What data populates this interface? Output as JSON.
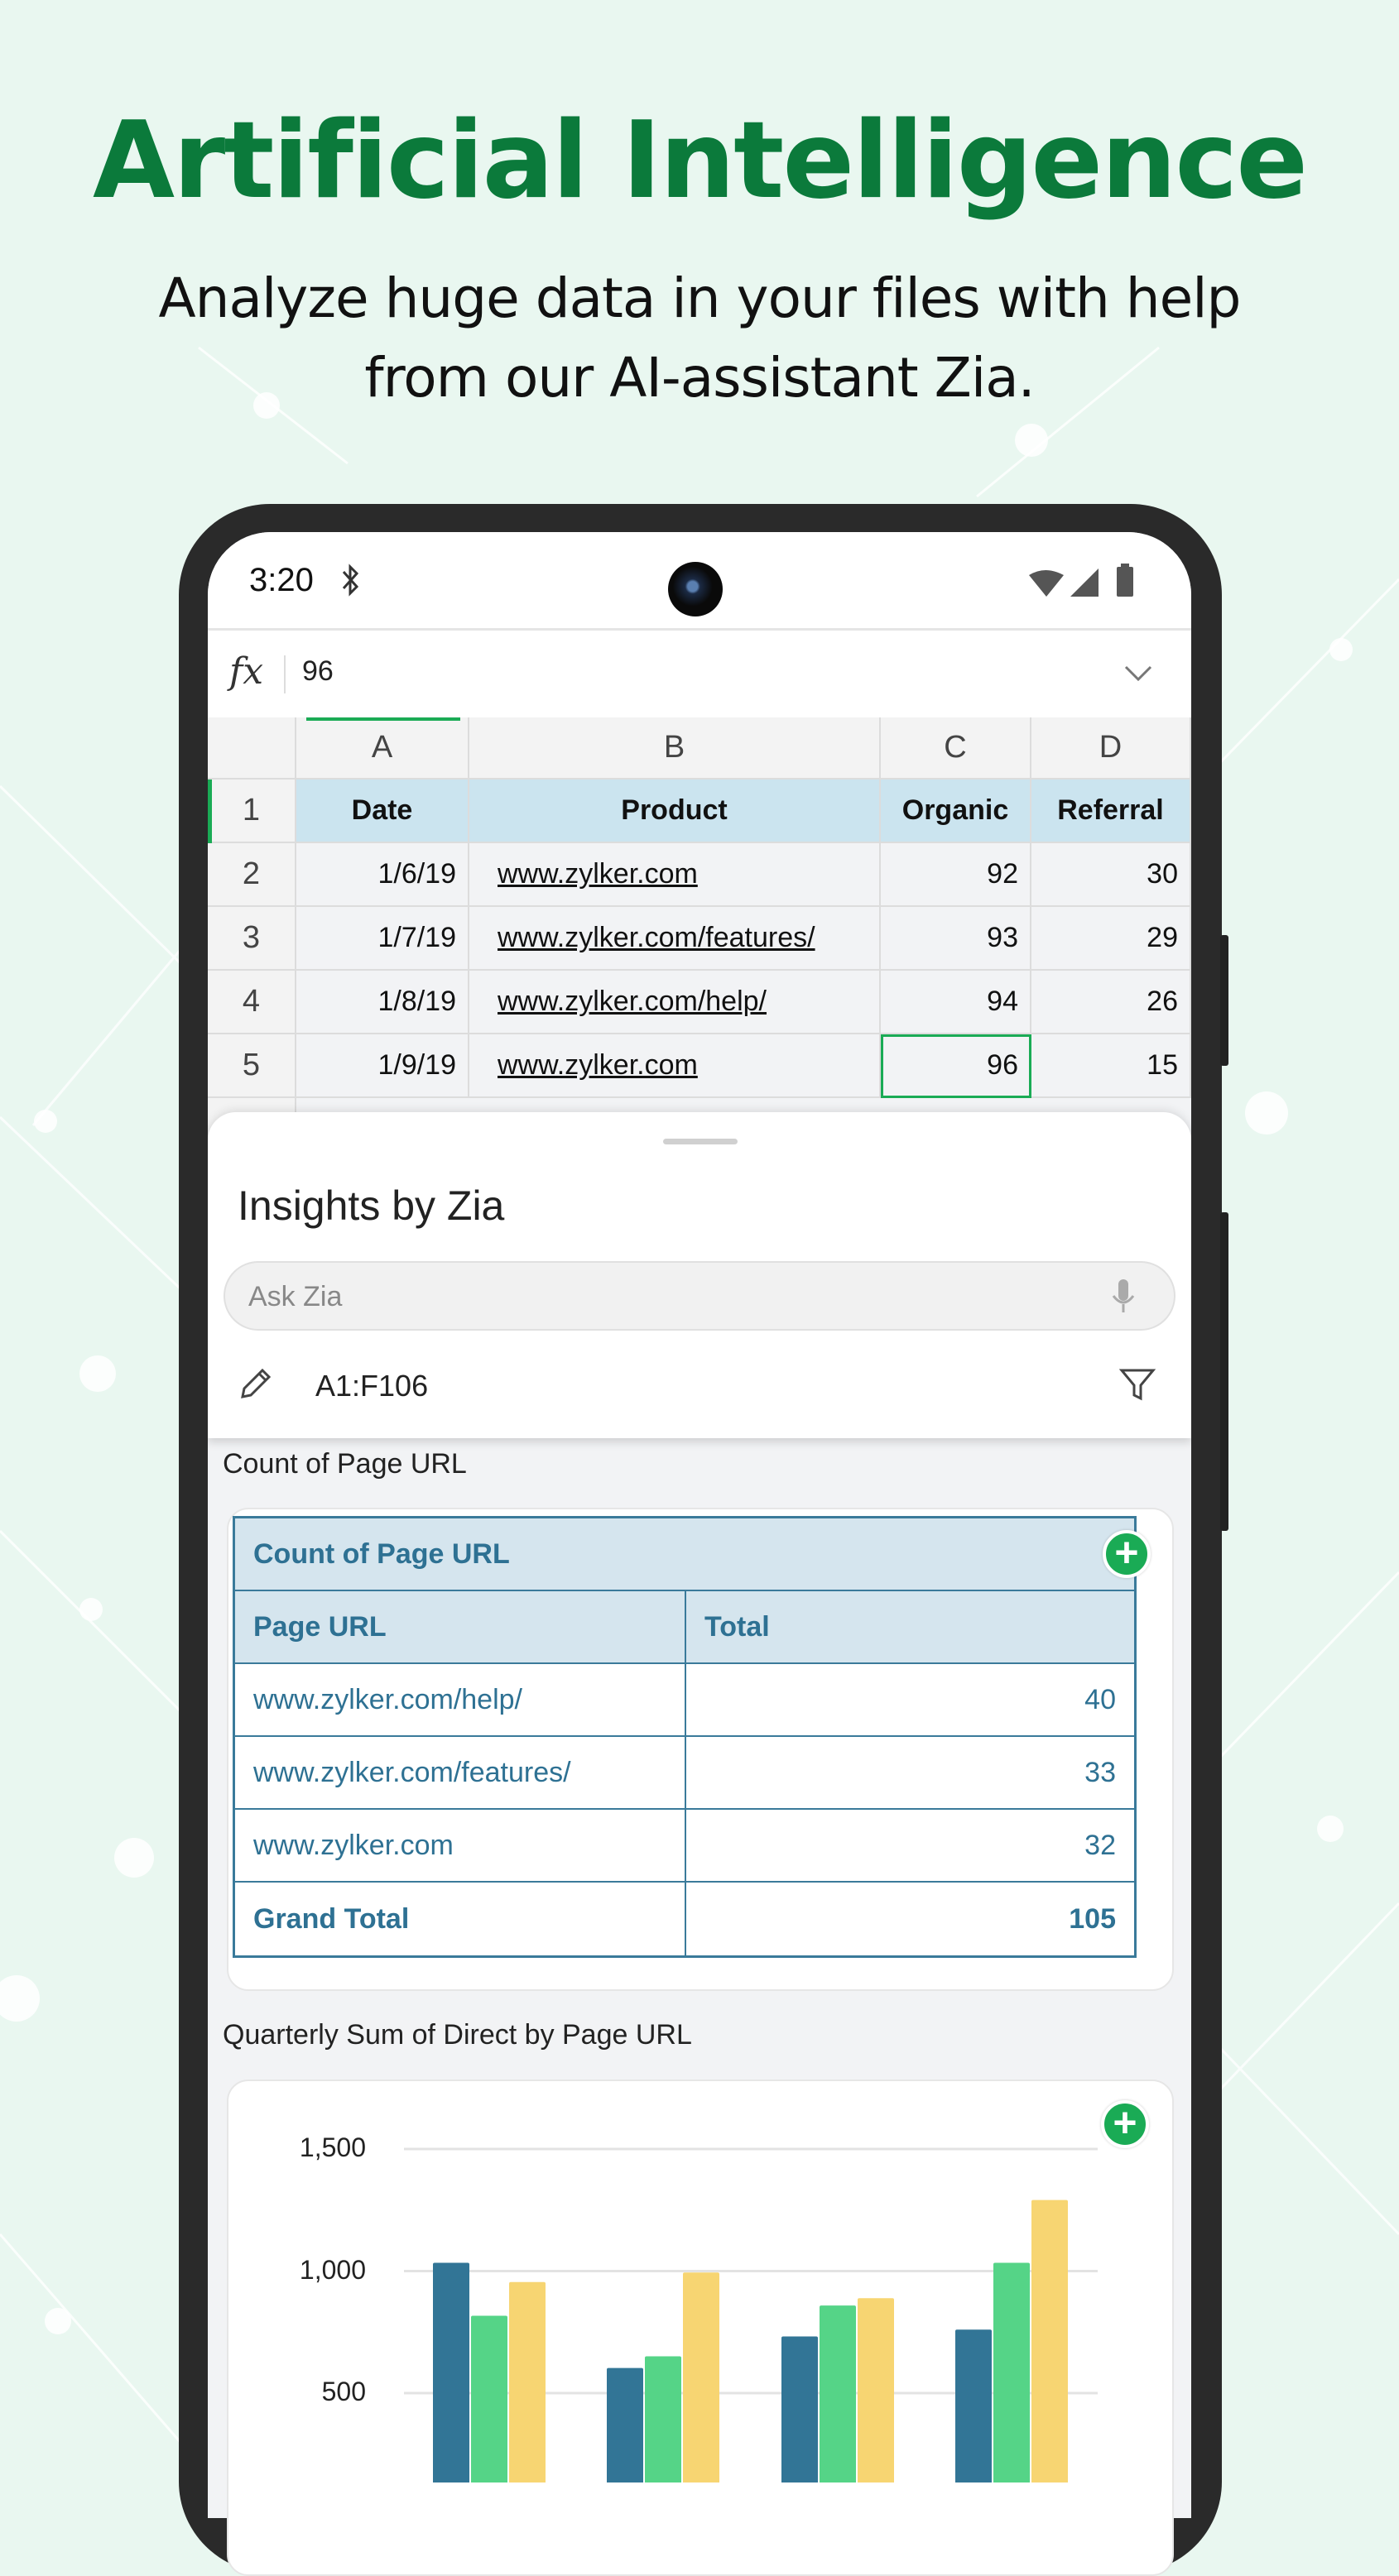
{
  "hero": {
    "title": "Artificial Intelligence",
    "subtitle_line1": "Analyze huge data in your files with help",
    "subtitle_line2": "from our AI-assistant Zia."
  },
  "status_bar": {
    "time": "3:20",
    "icons": [
      "bluetooth-icon",
      "wifi-icon",
      "signal-icon",
      "battery-icon"
    ]
  },
  "formula_bar": {
    "fx_label": "fx",
    "value": "96"
  },
  "spreadsheet": {
    "columns": [
      "A",
      "B",
      "C",
      "D"
    ],
    "rows": [
      {
        "num": "1",
        "cells": [
          "Date",
          "Product",
          "Organic",
          "Referral"
        ]
      },
      {
        "num": "2",
        "cells": [
          "1/6/19",
          "www.zylker.com",
          "92",
          "30"
        ]
      },
      {
        "num": "3",
        "cells": [
          "1/7/19",
          "www.zylker.com/features/",
          "93",
          "29"
        ]
      },
      {
        "num": "4",
        "cells": [
          "1/8/19",
          "www.zylker.com/help/",
          "94",
          "26"
        ]
      },
      {
        "num": "5",
        "cells": [
          "1/9/19",
          "www.zylker.com",
          "96",
          "15"
        ]
      }
    ],
    "selected_cell": "C5"
  },
  "insights": {
    "title": "Insights by Zia",
    "ask_placeholder": "Ask Zia",
    "range": "A1:F106"
  },
  "pivot": {
    "section_label": "Count of Page URL",
    "table_title": "Count of Page URL",
    "headers": [
      "Page URL",
      "Total"
    ],
    "rows": [
      [
        "www.zylker.com/help/",
        "40"
      ],
      [
        "www.zylker.com/features/",
        "33"
      ],
      [
        "www.zylker.com",
        "32"
      ]
    ],
    "grand_total": [
      "Grand Total",
      "105"
    ]
  },
  "chart_section_label": "Quarterly Sum  of Direct by Page URL",
  "colors": {
    "accent": "#1aab55",
    "series": [
      "#327596",
      "#55d487",
      "#f7d572"
    ]
  },
  "chart_data": {
    "type": "bar",
    "title": "",
    "ylim": [
      0,
      1500
    ],
    "yticks": [
      500,
      1000,
      1500
    ],
    "ytick_labels": [
      "500",
      "1,000",
      "1,500"
    ],
    "grid": true,
    "categories": [
      "",
      "",
      "",
      ""
    ],
    "series": [
      {
        "values": [
          1034,
          603,
          732,
          760
        ]
      },
      {
        "values": [
          817,
          651,
          859,
          1034
        ]
      },
      {
        "values": [
          955,
          994,
          889,
          1291
        ]
      }
    ]
  }
}
